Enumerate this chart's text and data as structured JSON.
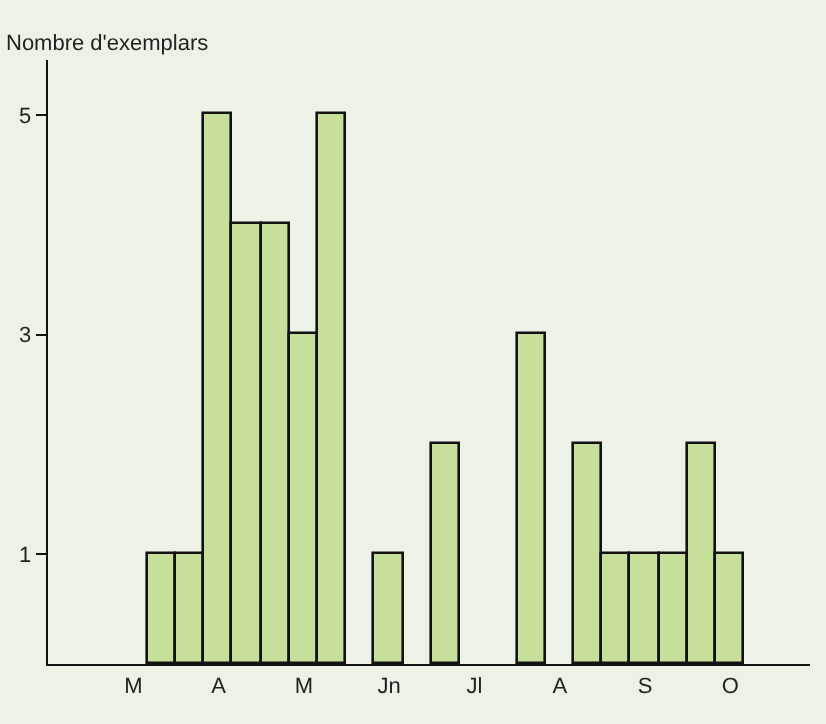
{
  "chart_data": {
    "type": "bar",
    "ylabel": "Nombre d'exemplars",
    "categories": [
      null,
      "M",
      null,
      null,
      "A",
      null,
      null,
      "M",
      null,
      null,
      "Jn",
      null,
      null,
      "Jl",
      null,
      null,
      "A",
      null,
      null,
      "S",
      null,
      null,
      "O",
      null,
      null
    ],
    "values": [
      null,
      null,
      1,
      1,
      5,
      4,
      4,
      3,
      5,
      null,
      1,
      null,
      2,
      null,
      null,
      3,
      null,
      2,
      1,
      1,
      1,
      2,
      1,
      null,
      null
    ],
    "color": "#c6df9a",
    "ylim": [
      0,
      5.5
    ],
    "yticks": [
      1,
      3,
      5
    ],
    "grid": false,
    "legend": false
  }
}
